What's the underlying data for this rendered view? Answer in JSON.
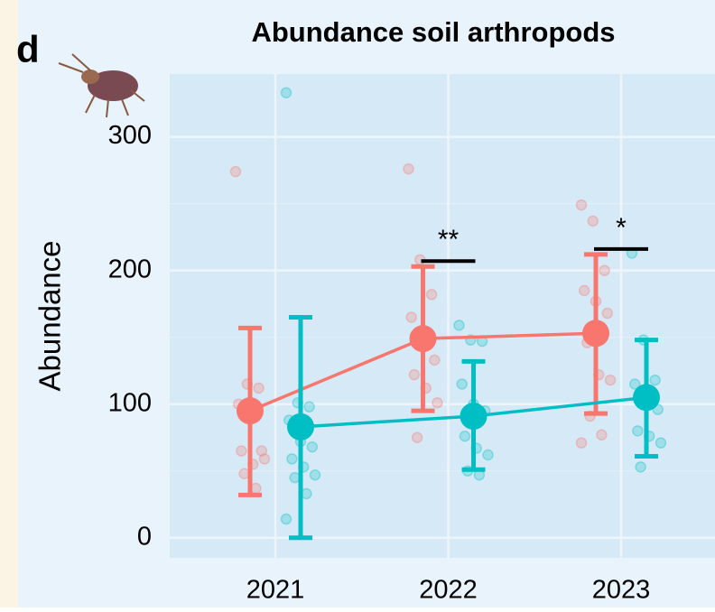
{
  "panel_label": "d",
  "chart_data": {
    "type": "dotplot",
    "title": "Abundance soil arthropods",
    "ylabel": "Abundance",
    "categories": [
      "2021",
      "2022",
      "2023"
    ],
    "ylim": [
      -15,
      347
    ],
    "yticks": [
      0,
      100,
      200,
      300
    ],
    "grid": true,
    "series": [
      {
        "color": "#f8766d",
        "values": [
          95,
          149,
          153
        ],
        "lower": [
          32,
          95,
          93
        ],
        "upper": [
          157,
          203,
          212
        ],
        "points": [
          [
            274,
            115,
            112,
            100,
            97,
            65,
            65,
            55,
            59,
            48,
            37
          ],
          [
            276,
            208,
            182,
            165,
            150,
            133,
            122,
            112,
            101,
            75
          ],
          [
            249,
            237,
            200,
            185,
            177,
            168,
            146,
            122,
            118,
            91,
            77,
            71
          ]
        ]
      },
      {
        "color": "#00bfc4",
        "values": [
          83,
          91,
          105
        ],
        "lower": [
          0,
          51,
          61
        ],
        "upper": [
          165,
          132,
          148
        ],
        "points": [
          [
            333,
            101,
            98,
            88,
            72,
            68,
            59,
            53,
            47,
            45,
            33,
            14
          ],
          [
            159,
            148,
            147,
            115,
            100,
            95,
            76,
            67,
            62,
            50,
            47
          ],
          [
            213,
            148,
            118,
            115,
            100,
            96,
            80,
            76,
            71,
            53
          ]
        ]
      }
    ],
    "annotations": [
      {
        "text": "**",
        "category": 1
      },
      {
        "text": "*",
        "category": 2
      }
    ]
  }
}
